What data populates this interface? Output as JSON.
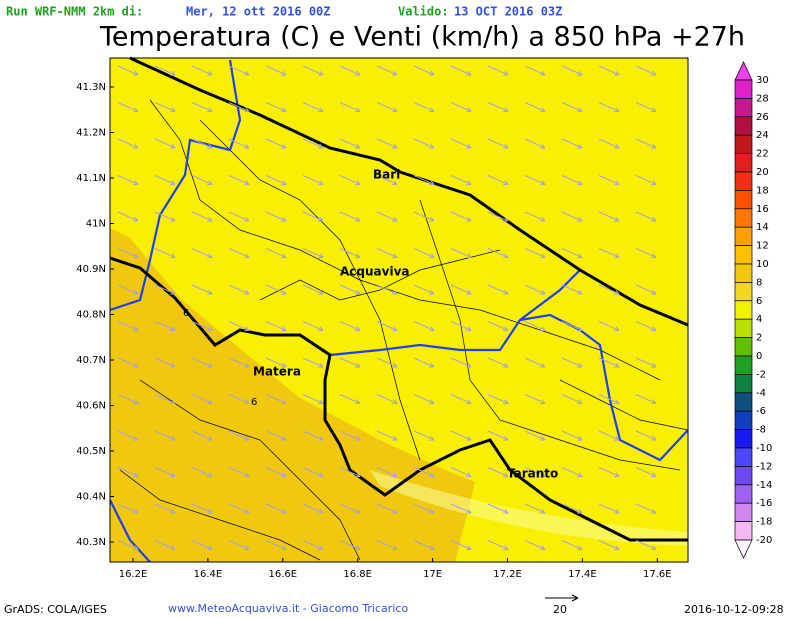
{
  "header": {
    "run_label": "Run WRF-NMM 2km di:",
    "run_date": "Mer, 12 ott 2016 00Z",
    "valid_label": "Valido:",
    "valid_date": "13 OCT 2016 03Z",
    "title": "Temperatura (C) e Venti (km/h) a 850 hPa +27h"
  },
  "map": {
    "lat_labels": [
      "41.3N",
      "41.2N",
      "41.1N",
      "41N",
      "40.9N",
      "40.8N",
      "40.7N",
      "40.6N",
      "40.5N",
      "40.4N",
      "40.3N"
    ],
    "lon_labels": [
      "16.2E",
      "16.4E",
      "16.6E",
      "16.8E",
      "17E",
      "17.2E",
      "17.4E",
      "17.6E"
    ],
    "places": [
      "Bari",
      "Acquaviva",
      "Matera",
      "Taranto"
    ],
    "contour_labels": [
      "6",
      "6"
    ]
  },
  "colorbar": {
    "labels": [
      "30",
      "28",
      "26",
      "24",
      "22",
      "20",
      "18",
      "16",
      "14",
      "12",
      "10",
      "8",
      "6",
      "4",
      "2",
      "0",
      "-2",
      "-4",
      "-6",
      "-8",
      "-10",
      "-12",
      "-14",
      "-16",
      "-18",
      "-20"
    ]
  },
  "footer": {
    "software": "GrADS: COLA/IGES",
    "credit": "www.MeteoAcquaviva.it - Giacomo Tricarico",
    "wind_scale": "20",
    "timestamp": "2016-10-12-09:28"
  }
}
